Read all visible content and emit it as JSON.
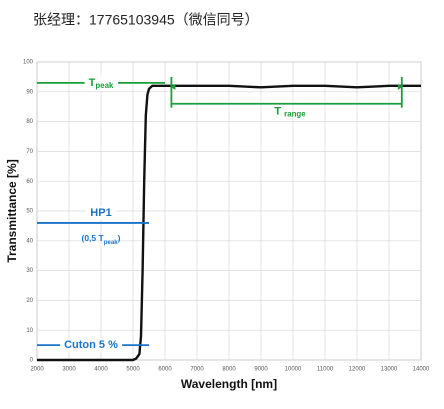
{
  "header": "张经理：17765103945（微信同号）",
  "chart_data": {
    "type": "line",
    "xlabel": "Wavelength [nm]",
    "ylabel": "Transmittance [%]",
    "xlim": [
      2000,
      14000
    ],
    "ylim": [
      0,
      100
    ],
    "xticks": [
      2000,
      3000,
      4000,
      5000,
      6000,
      7000,
      8000,
      9000,
      10000,
      11000,
      12000,
      13000,
      14000
    ],
    "yticks": [
      0,
      10,
      20,
      30,
      40,
      50,
      60,
      70,
      80,
      90,
      100
    ],
    "grid": true,
    "series": [
      {
        "color": "#111111",
        "x": [
          2000,
          3000,
          4000,
          5000,
          5100,
          5200,
          5250,
          5300,
          5350,
          5400,
          5450,
          5500,
          5600,
          5800,
          6000,
          7000,
          8000,
          9000,
          10000,
          11000,
          12000,
          13000,
          14000
        ],
        "values": [
          0,
          0,
          0,
          0,
          0.5,
          2,
          8,
          30,
          60,
          82,
          89,
          91,
          92,
          92,
          92,
          92,
          92,
          91.5,
          92,
          92,
          91.5,
          92,
          92
        ]
      }
    ],
    "annotations": [
      {
        "parts": [
          "T",
          "peak"
        ],
        "color": "#1a9e3a",
        "y": 93,
        "x": [
          2000,
          6000
        ]
      },
      {
        "parts": [
          "T ",
          "range"
        ],
        "color": "#1a9e3a",
        "y": 86,
        "x": [
          6200,
          13400
        ],
        "bracket": [
          86,
          95
        ]
      },
      {
        "parts": [
          "HP1"
        ],
        "sub_parts": [
          "(0,5 T",
          "peak",
          ")"
        ],
        "color": "#1a73c8",
        "y": 46,
        "x": [
          2000,
          5500
        ]
      },
      {
        "parts": [
          "Cuton 5 %"
        ],
        "color": "#1a73c8",
        "y": 5,
        "x": [
          2000,
          5500
        ]
      }
    ]
  }
}
